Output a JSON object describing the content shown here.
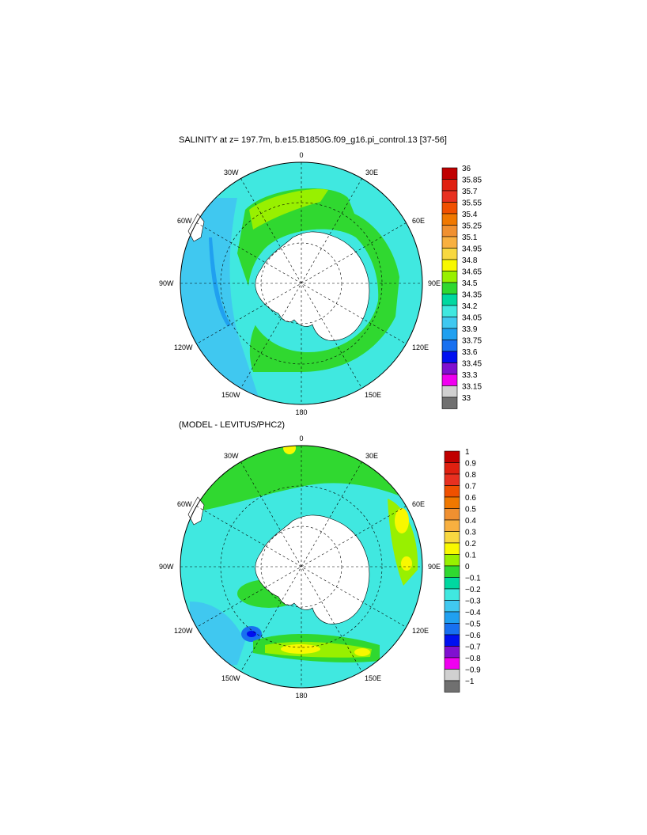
{
  "panels": [
    {
      "title": "SALINITY at z= 197.7m, b.e15.B1850G.f09_g16.pi_control.13 [37-56]",
      "lon_labels": {
        "n": "0",
        "ne": "30E",
        "e1": "60E",
        "e": "90E",
        "se": "120E",
        "s2": "150E",
        "s": "180",
        "sw2": "150W",
        "sw": "120W",
        "w": "90W",
        "nw1": "60W",
        "nw": "30W"
      },
      "colorbar": {
        "levels": [
          "36",
          "35.85",
          "35.7",
          "35.55",
          "35.4",
          "35.25",
          "35.1",
          "34.95",
          "34.8",
          "34.65",
          "34.5",
          "34.35",
          "34.2",
          "34.05",
          "33.9",
          "33.75",
          "33.6",
          "33.45",
          "33.3",
          "33.15",
          "33"
        ],
        "colors": [
          "#c00000",
          "#e02010",
          "#e83020",
          "#f05000",
          "#f07800",
          "#f09030",
          "#f8b040",
          "#f8d840",
          "#f8f800",
          "#98f000",
          "#30d830",
          "#00d8a0",
          "#40e8e0",
          "#40c8f0",
          "#20a0f0",
          "#1870f0",
          "#0010f0",
          "#8010d0",
          "#f000f0",
          "#d0d0d0",
          "#707070"
        ]
      }
    },
    {
      "title": "(MODEL - LEVITUS/PHC2)",
      "lon_labels": {
        "n": "0",
        "ne": "30E",
        "e1": "60E",
        "e": "90E",
        "se": "120E",
        "s2": "150E",
        "s": "180",
        "sw2": "150W",
        "sw": "120W",
        "w": "90W",
        "nw1": "60W",
        "nw": "30W"
      },
      "colorbar": {
        "levels": [
          "1",
          "0.9",
          "0.8",
          "0.7",
          "0.6",
          "0.5",
          "0.4",
          "0.3",
          "0.2",
          "0.1",
          "0",
          "−0.1",
          "−0.2",
          "−0.3",
          "−0.4",
          "−0.5",
          "−0.6",
          "−0.7",
          "−0.8",
          "−0.9",
          "−1"
        ],
        "colors": [
          "#c00000",
          "#e02010",
          "#e83020",
          "#f05000",
          "#f07800",
          "#f09030",
          "#f8b040",
          "#f8d840",
          "#f8f800",
          "#98f000",
          "#30d830",
          "#00d8a0",
          "#40e8e0",
          "#40c8f0",
          "#20a0f0",
          "#1870f0",
          "#0010f0",
          "#8010d0",
          "#f000f0",
          "#d0d0d0",
          "#707070"
        ]
      }
    }
  ]
}
